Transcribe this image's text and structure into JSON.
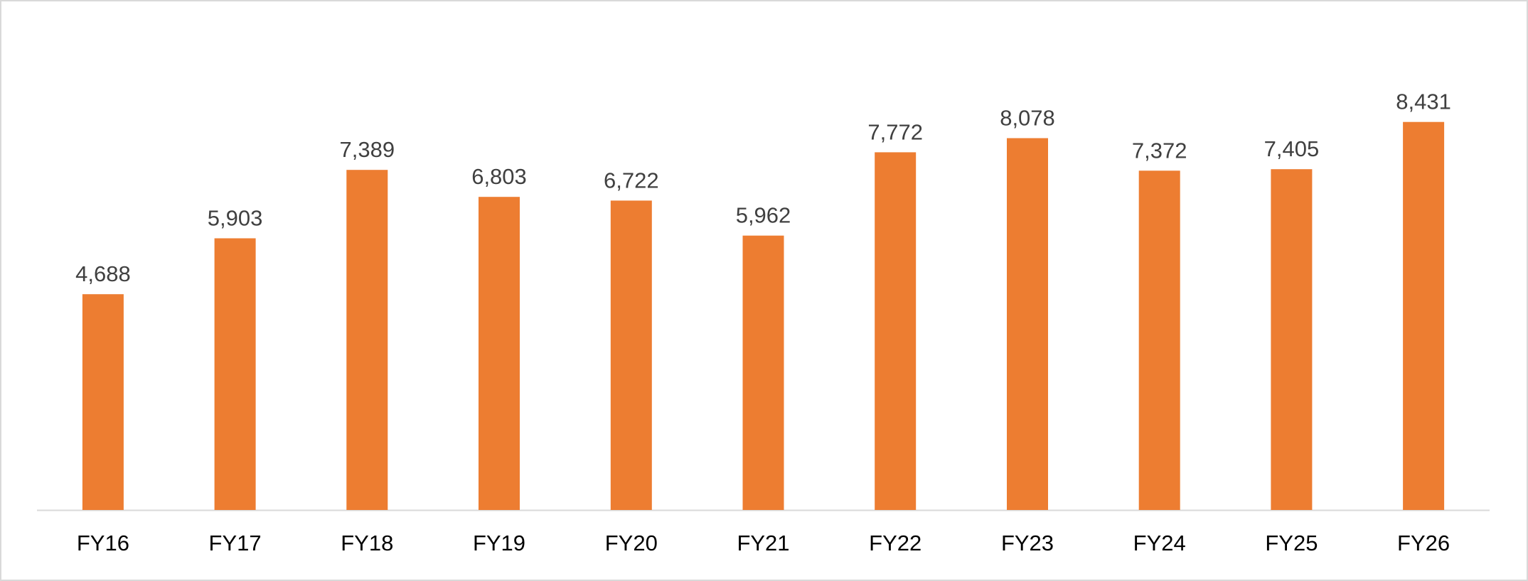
{
  "chart_data": {
    "type": "bar",
    "categories": [
      "FY16",
      "FY17",
      "FY18",
      "FY19",
      "FY20",
      "FY21",
      "FY22",
      "FY23",
      "FY24",
      "FY25",
      "FY26"
    ],
    "values": [
      4688,
      5903,
      7389,
      6803,
      6722,
      5962,
      7772,
      8078,
      7372,
      7405,
      8431
    ],
    "data_labels": [
      "4,688",
      "5,903",
      "7,389",
      "6,803",
      "6,722",
      "5,962",
      "7,772",
      "8,078",
      "7,372",
      "7,405",
      "8,431"
    ],
    "title": "",
    "xlabel": "",
    "ylabel": "",
    "ylim": [
      0,
      9000
    ],
    "grid": false,
    "legend": "none",
    "bar_color": "#ED7D31",
    "axis_color": "#d9d9d9"
  }
}
